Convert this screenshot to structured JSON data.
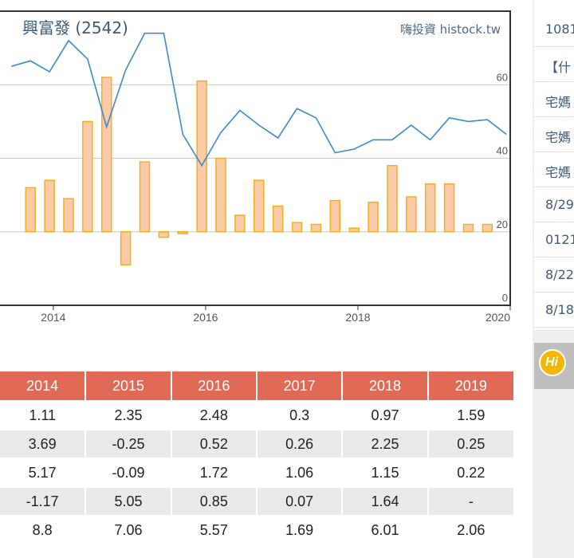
{
  "chart_data": {
    "type": "bar+line",
    "title": "興富發 (2542)",
    "watermark": "嗨投資 histock.tw",
    "x_ticks": [
      "2014",
      "2016",
      "2018",
      "2020"
    ],
    "y_ticks": [
      "0",
      "20",
      "40",
      "60"
    ],
    "ylim": [
      0,
      80
    ],
    "bar_baseline": 20,
    "grid": "horizontal",
    "bar_color": "#fbcaa8",
    "bar_edge_color": "#f0b020",
    "line_color": "#3a8cc8",
    "series": [
      {
        "type": "bar",
        "x": [
          2013.7,
          2013.95,
          2014.2,
          2014.45,
          2014.7,
          2014.95,
          2015.2,
          2015.45,
          2015.7,
          2015.95,
          2016.2,
          2016.45,
          2016.7,
          2016.95,
          2017.2,
          2017.45,
          2017.7,
          2017.95,
          2018.2,
          2018.45,
          2018.7,
          2018.95,
          2019.2,
          2019.45,
          2019.7
        ],
        "values": [
          32,
          34,
          29,
          50,
          62,
          11,
          39,
          18.5,
          19.5,
          61,
          40,
          24.5,
          34,
          27,
          22.5,
          22,
          28.5,
          21,
          28,
          38,
          29.5,
          33,
          33,
          22,
          22
        ]
      },
      {
        "type": "line",
        "x": [
          2013.45,
          2013.7,
          2013.95,
          2014.2,
          2014.45,
          2014.7,
          2014.95,
          2015.2,
          2015.45,
          2015.7,
          2015.95,
          2016.2,
          2016.45,
          2016.7,
          2016.95,
          2017.2,
          2017.45,
          2017.7,
          2017.95,
          2018.2,
          2018.45,
          2018.7,
          2018.95,
          2019.2,
          2019.45,
          2019.7,
          2019.95
        ],
        "values": [
          65,
          66.5,
          63.5,
          72,
          67,
          48.5,
          64,
          74,
          74,
          46.5,
          38,
          47,
          53,
          49,
          45.5,
          53.5,
          51,
          41.5,
          42.5,
          45,
          45,
          49,
          45,
          51,
          50,
          50.5,
          46.5
        ]
      }
    ]
  },
  "table": {
    "headers": [
      "2014",
      "2015",
      "2016",
      "2017",
      "2018",
      "2019"
    ],
    "rows": [
      [
        "1.11",
        "2.35",
        "2.48",
        "0.3",
        "0.97",
        "1.59"
      ],
      [
        "3.69",
        "-0.25",
        "0.52",
        "0.26",
        "2.25",
        "0.25"
      ],
      [
        "5.17",
        "-0.09",
        "1.72",
        "1.06",
        "1.15",
        "0.22"
      ],
      [
        "-1.17",
        "5.05",
        "0.85",
        "0.07",
        "1.64",
        "-"
      ],
      [
        "8.8",
        "7.06",
        "5.57",
        "1.69",
        "6.01",
        "2.06"
      ]
    ]
  },
  "sidebar": {
    "news": [
      "1081",
      "【什",
      "宅媽",
      "宅媽",
      "宅媽",
      "8/29",
      "0121",
      "8/22",
      "8/18"
    ],
    "hi_badge": "Hi"
  }
}
